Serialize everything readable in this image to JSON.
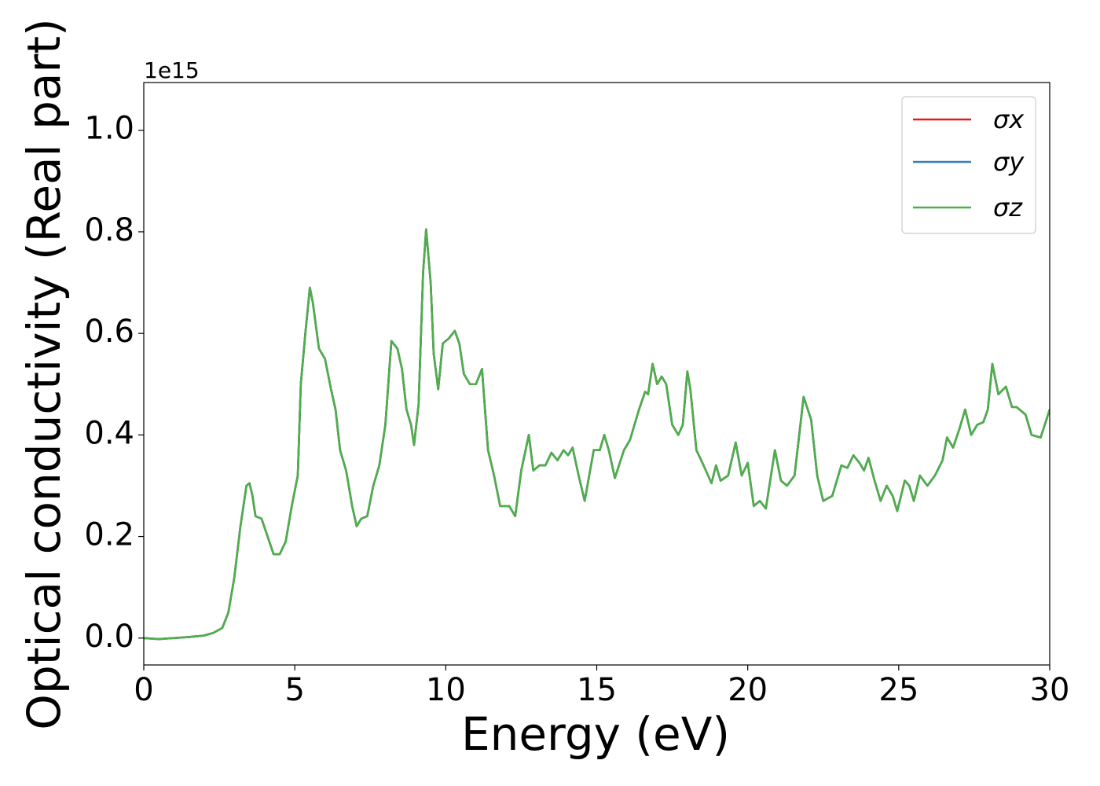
{
  "chart_data": {
    "type": "line",
    "xlabel": "Energy (eV)",
    "ylabel": "Optical conductivity (Real part)",
    "yaxis_offset": "1e15",
    "xlim": [
      0,
      30
    ],
    "ylim": [
      -0.053,
      1.094
    ],
    "xticks": [
      0,
      5,
      10,
      15,
      20,
      25,
      30
    ],
    "yticks": [
      {
        "value": 0,
        "label": "0.0"
      },
      0.2,
      0.4,
      0.6,
      0.8,
      {
        "value": 1,
        "label": "1.0"
      }
    ],
    "legend": "upper right",
    "x": [
      0,
      0.5,
      1,
      1.5,
      2,
      2.3,
      2.6,
      2.8,
      3.0,
      3.2,
      3.4,
      3.5,
      3.6,
      3.7,
      3.9,
      4.1,
      4.3,
      4.5,
      4.7,
      4.9,
      5.1,
      5.2,
      5.35,
      5.5,
      5.6,
      5.8,
      6.0,
      6.2,
      6.35,
      6.5,
      6.7,
      6.9,
      7.05,
      7.2,
      7.4,
      7.6,
      7.8,
      8.0,
      8.2,
      8.4,
      8.55,
      8.7,
      8.85,
      8.95,
      9.1,
      9.25,
      9.35,
      9.5,
      9.6,
      9.75,
      9.9,
      10.1,
      10.3,
      10.45,
      10.6,
      10.8,
      11.0,
      11.2,
      11.4,
      11.6,
      11.8,
      12.1,
      12.3,
      12.5,
      12.75,
      12.9,
      13.1,
      13.3,
      13.5,
      13.7,
      13.9,
      14.05,
      14.2,
      14.4,
      14.6,
      14.9,
      15.1,
      15.25,
      15.4,
      15.6,
      15.9,
      16.1,
      16.4,
      16.6,
      16.7,
      16.85,
      17.0,
      17.15,
      17.3,
      17.5,
      17.7,
      17.85,
      18.0,
      18.1,
      18.3,
      18.5,
      18.8,
      18.95,
      19.1,
      19.35,
      19.6,
      19.8,
      20.0,
      20.2,
      20.4,
      20.6,
      20.9,
      21.1,
      21.3,
      21.55,
      21.85,
      22.1,
      22.3,
      22.5,
      22.8,
      23.1,
      23.3,
      23.5,
      23.7,
      23.85,
      24.0,
      24.2,
      24.4,
      24.6,
      24.8,
      24.95,
      25.2,
      25.35,
      25.5,
      25.7,
      25.95,
      26.2,
      26.45,
      26.6,
      26.8,
      27.0,
      27.2,
      27.4,
      27.6,
      27.8,
      27.95,
      28.1,
      28.3,
      28.55,
      28.75,
      28.9,
      29.2,
      29.4,
      29.7,
      30.0
    ],
    "series": [
      {
        "name": "σx",
        "color": "#e41a1c",
        "values": [
          0,
          -0.002,
          0,
          0.002,
          0.005,
          0.01,
          0.02,
          0.05,
          0.12,
          0.22,
          0.3,
          0.305,
          0.28,
          0.24,
          0.235,
          0.2,
          0.165,
          0.165,
          0.19,
          0.26,
          0.32,
          0.5,
          0.6,
          0.69,
          0.66,
          0.57,
          0.55,
          0.49,
          0.45,
          0.37,
          0.33,
          0.26,
          0.22,
          0.235,
          0.24,
          0.3,
          0.34,
          0.42,
          0.585,
          0.57,
          0.53,
          0.45,
          0.42,
          0.38,
          0.46,
          0.72,
          0.805,
          0.7,
          0.56,
          0.49,
          0.58,
          0.59,
          0.605,
          0.58,
          0.52,
          0.5,
          0.5,
          0.53,
          0.37,
          0.32,
          0.26,
          0.26,
          0.24,
          0.33,
          0.4,
          0.33,
          0.34,
          0.34,
          0.365,
          0.35,
          0.37,
          0.36,
          0.375,
          0.32,
          0.27,
          0.37,
          0.37,
          0.4,
          0.37,
          0.315,
          0.37,
          0.39,
          0.45,
          0.485,
          0.48,
          0.54,
          0.5,
          0.515,
          0.5,
          0.42,
          0.4,
          0.42,
          0.525,
          0.49,
          0.37,
          0.345,
          0.305,
          0.34,
          0.31,
          0.32,
          0.385,
          0.32,
          0.345,
          0.26,
          0.27,
          0.255,
          0.37,
          0.31,
          0.3,
          0.32,
          0.475,
          0.43,
          0.32,
          0.27,
          0.28,
          0.34,
          0.335,
          0.36,
          0.345,
          0.33,
          0.355,
          0.31,
          0.27,
          0.3,
          0.28,
          0.25,
          0.31,
          0.3,
          0.27,
          0.32,
          0.3,
          0.32,
          0.35,
          0.395,
          0.375,
          0.41,
          0.45,
          0.4,
          0.42,
          0.425,
          0.45,
          0.54,
          0.48,
          0.495,
          0.455,
          0.455,
          0.44,
          0.4,
          0.395,
          0.45
        ]
      },
      {
        "name": "σy",
        "color": "#377eb8",
        "values": [
          0,
          -0.002,
          0,
          0.002,
          0.005,
          0.01,
          0.02,
          0.05,
          0.12,
          0.22,
          0.3,
          0.305,
          0.28,
          0.24,
          0.235,
          0.2,
          0.165,
          0.165,
          0.19,
          0.26,
          0.32,
          0.5,
          0.6,
          0.69,
          0.66,
          0.57,
          0.55,
          0.49,
          0.45,
          0.37,
          0.33,
          0.26,
          0.22,
          0.235,
          0.24,
          0.3,
          0.34,
          0.42,
          0.585,
          0.57,
          0.53,
          0.45,
          0.42,
          0.38,
          0.46,
          0.72,
          0.805,
          0.7,
          0.56,
          0.49,
          0.58,
          0.59,
          0.605,
          0.58,
          0.52,
          0.5,
          0.5,
          0.53,
          0.37,
          0.32,
          0.26,
          0.26,
          0.24,
          0.33,
          0.4,
          0.33,
          0.34,
          0.34,
          0.365,
          0.35,
          0.37,
          0.36,
          0.375,
          0.32,
          0.27,
          0.37,
          0.37,
          0.4,
          0.37,
          0.315,
          0.37,
          0.39,
          0.45,
          0.485,
          0.48,
          0.54,
          0.5,
          0.515,
          0.5,
          0.42,
          0.4,
          0.42,
          0.525,
          0.49,
          0.37,
          0.345,
          0.305,
          0.34,
          0.31,
          0.32,
          0.385,
          0.32,
          0.345,
          0.26,
          0.27,
          0.255,
          0.37,
          0.31,
          0.3,
          0.32,
          0.475,
          0.43,
          0.32,
          0.27,
          0.28,
          0.34,
          0.335,
          0.36,
          0.345,
          0.33,
          0.355,
          0.31,
          0.27,
          0.3,
          0.28,
          0.25,
          0.31,
          0.3,
          0.27,
          0.32,
          0.3,
          0.32,
          0.35,
          0.395,
          0.375,
          0.41,
          0.45,
          0.4,
          0.42,
          0.425,
          0.45,
          0.54,
          0.48,
          0.495,
          0.455,
          0.455,
          0.44,
          0.4,
          0.395,
          0.45
        ]
      },
      {
        "name": "σz",
        "color": "#4daf4a",
        "values": [
          0,
          -0.002,
          0,
          0.002,
          0.005,
          0.01,
          0.02,
          0.05,
          0.12,
          0.22,
          0.3,
          0.305,
          0.28,
          0.24,
          0.235,
          0.2,
          0.165,
          0.165,
          0.19,
          0.26,
          0.32,
          0.5,
          0.6,
          0.69,
          0.66,
          0.57,
          0.55,
          0.49,
          0.45,
          0.37,
          0.33,
          0.26,
          0.22,
          0.235,
          0.24,
          0.3,
          0.34,
          0.42,
          0.585,
          0.57,
          0.53,
          0.45,
          0.42,
          0.38,
          0.46,
          0.72,
          0.805,
          0.7,
          0.56,
          0.49,
          0.58,
          0.59,
          0.605,
          0.58,
          0.52,
          0.5,
          0.5,
          0.53,
          0.37,
          0.32,
          0.26,
          0.26,
          0.24,
          0.33,
          0.4,
          0.33,
          0.34,
          0.34,
          0.365,
          0.35,
          0.37,
          0.36,
          0.375,
          0.32,
          0.27,
          0.37,
          0.37,
          0.4,
          0.37,
          0.315,
          0.37,
          0.39,
          0.45,
          0.485,
          0.48,
          0.54,
          0.5,
          0.515,
          0.5,
          0.42,
          0.4,
          0.42,
          0.525,
          0.49,
          0.37,
          0.345,
          0.305,
          0.34,
          0.31,
          0.32,
          0.385,
          0.32,
          0.345,
          0.26,
          0.27,
          0.255,
          0.37,
          0.31,
          0.3,
          0.32,
          0.475,
          0.43,
          0.32,
          0.27,
          0.28,
          0.34,
          0.335,
          0.36,
          0.345,
          0.33,
          0.355,
          0.31,
          0.27,
          0.3,
          0.28,
          0.25,
          0.31,
          0.3,
          0.27,
          0.32,
          0.3,
          0.32,
          0.35,
          0.395,
          0.375,
          0.41,
          0.45,
          0.4,
          0.42,
          0.425,
          0.45,
          0.54,
          0.48,
          0.495,
          0.455,
          0.455,
          0.44,
          0.4,
          0.395,
          0.45
        ]
      }
    ]
  }
}
